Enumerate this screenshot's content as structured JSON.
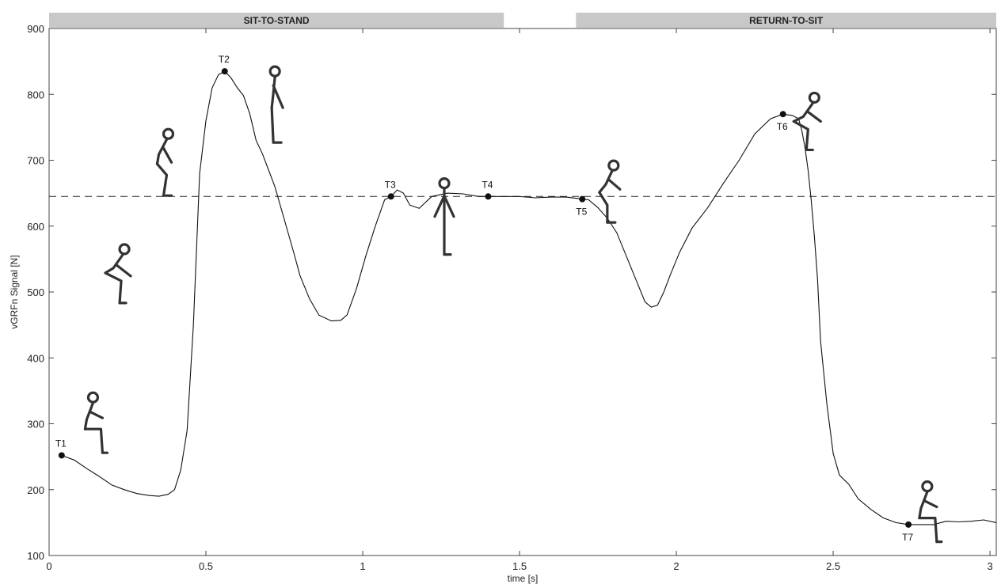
{
  "chart_data": {
    "type": "line",
    "title": "",
    "xlabel": "time [s]",
    "ylabel": "vGRFn Signal [N]",
    "xlim": [
      0,
      3.02
    ],
    "ylim": [
      100,
      900
    ],
    "x_ticks": [
      0,
      0.5,
      1,
      1.5,
      2,
      2.5,
      3
    ],
    "x_tick_labels": [
      "0",
      "0.5",
      "1",
      "1.5",
      "2",
      "2.5",
      "3"
    ],
    "y_ticks": [
      100,
      200,
      300,
      400,
      500,
      600,
      700,
      800,
      900
    ],
    "y_tick_labels": [
      "100",
      "200",
      "300",
      "400",
      "500",
      "600",
      "700",
      "800",
      "900"
    ],
    "grid": false,
    "reference_line": {
      "y": 645,
      "style": "dashed"
    },
    "phases": [
      {
        "label": "SIT-TO-STAND",
        "x_start": 0,
        "x_end": 1.45
      },
      {
        "label": "RETURN-TO-SIT",
        "x_start": 1.68,
        "x_end": 3.02
      }
    ],
    "series": [
      {
        "x": [
          0.04,
          0.08,
          0.12,
          0.16,
          0.2,
          0.24,
          0.28,
          0.32,
          0.35,
          0.38,
          0.4,
          0.42,
          0.44,
          0.46,
          0.48,
          0.5,
          0.52,
          0.54,
          0.56,
          0.58,
          0.6,
          0.62,
          0.64,
          0.66,
          0.68,
          0.7,
          0.72,
          0.75,
          0.78,
          0.8,
          0.83,
          0.86,
          0.9,
          0.93,
          0.95,
          0.98,
          1.01,
          1.04,
          1.07,
          1.09,
          1.11,
          1.13,
          1.15,
          1.18,
          1.22,
          1.27,
          1.32,
          1.37,
          1.4,
          1.45,
          1.5,
          1.55,
          1.6,
          1.65,
          1.7,
          1.72,
          1.75,
          1.78,
          1.81,
          1.84,
          1.87,
          1.9,
          1.92,
          1.94,
          1.96,
          1.98,
          2.01,
          2.05,
          2.1,
          2.15,
          2.2,
          2.25,
          2.3,
          2.34,
          2.37,
          2.39,
          2.4,
          2.41,
          2.42,
          2.43,
          2.44,
          2.45,
          2.46,
          2.48,
          2.5,
          2.52,
          2.55,
          2.58,
          2.62,
          2.66,
          2.7,
          2.74,
          2.78,
          2.82,
          2.86,
          2.9,
          2.94,
          2.98,
          3.02
        ],
        "values": [
          252,
          245,
          232,
          220,
          207,
          200,
          194,
          191,
          190,
          193,
          200,
          230,
          290,
          450,
          680,
          760,
          810,
          830,
          835,
          825,
          810,
          798,
          770,
          730,
          710,
          685,
          660,
          610,
          560,
          525,
          490,
          465,
          456,
          457,
          465,
          505,
          555,
          600,
          640,
          645,
          655,
          650,
          632,
          627,
          645,
          650,
          649,
          645,
          645,
          645,
          645,
          643,
          644,
          644,
          641,
          640,
          628,
          612,
          590,
          555,
          520,
          485,
          477,
          480,
          500,
          525,
          560,
          597,
          628,
          665,
          700,
          740,
          763,
          770,
          768,
          763,
          745,
          720,
          685,
          640,
          585,
          520,
          425,
          330,
          255,
          222,
          208,
          186,
          170,
          157,
          150,
          147,
          147,
          147,
          152,
          151,
          152,
          154,
          150
        ],
        "color": "#111111"
      }
    ],
    "annotations": [
      {
        "label": "T1",
        "x": 0.04,
        "y": 252
      },
      {
        "label": "T2",
        "x": 0.56,
        "y": 835
      },
      {
        "label": "T3",
        "x": 1.09,
        "y": 645
      },
      {
        "label": "T4",
        "x": 1.4,
        "y": 645
      },
      {
        "label": "T5",
        "x": 1.7,
        "y": 641
      },
      {
        "label": "T6",
        "x": 2.34,
        "y": 770
      },
      {
        "label": "T7",
        "x": 2.74,
        "y": 147
      }
    ],
    "figures": [
      {
        "pose": "seated",
        "x": 0.14,
        "y": 340
      },
      {
        "pose": "trunk-flexed-crouch",
        "x": 0.24,
        "y": 565
      },
      {
        "pose": "rising",
        "x": 0.38,
        "y": 740
      },
      {
        "pose": "upright-rising",
        "x": 0.72,
        "y": 835
      },
      {
        "pose": "standing",
        "x": 1.26,
        "y": 665
      },
      {
        "pose": "lowering",
        "x": 1.8,
        "y": 692
      },
      {
        "pose": "crouch-descent",
        "x": 2.44,
        "y": 795
      },
      {
        "pose": "seated",
        "x": 2.8,
        "y": 205
      }
    ]
  }
}
